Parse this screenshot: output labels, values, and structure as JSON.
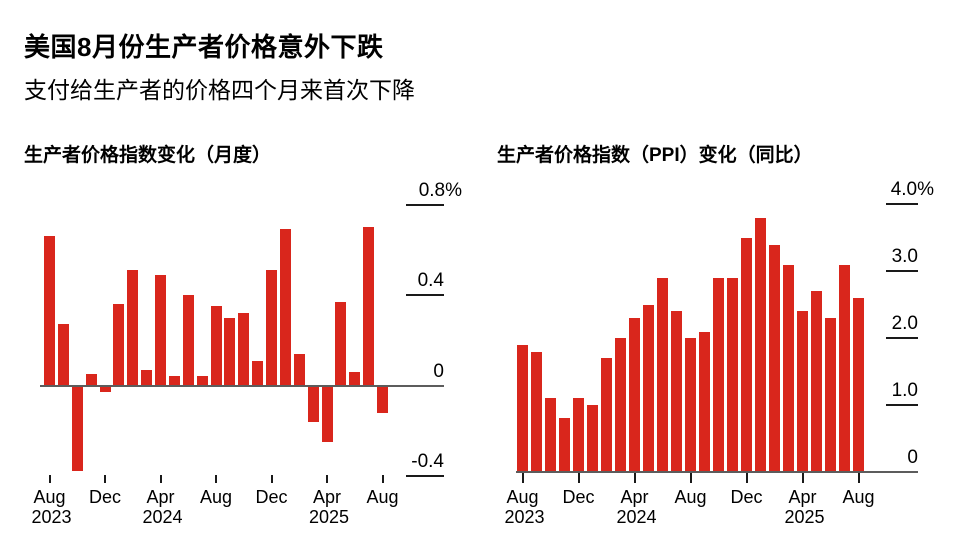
{
  "header": {
    "title": "美国8月份生产者价格意外下跌",
    "subtitle": "支付给生产者的价格四个月来首次下降"
  },
  "colors": {
    "bar_red": "#d9261c",
    "axis_line": "#5c5c5c",
    "tick_line": "#1a1a1a",
    "text": "#000000",
    "background": "#ffffff"
  },
  "chart_data": [
    {
      "type": "bar",
      "title": "生产者价格指数变化（月度）",
      "unit": "%",
      "legend": "none",
      "grid": false,
      "categories": [
        "Aug 2023",
        "Sep 2023",
        "Oct 2023",
        "Nov 2023",
        "Dec 2023",
        "Jan 2024",
        "Feb 2024",
        "Mar 2024",
        "Apr 2024",
        "May 2024",
        "Jun 2024",
        "Jul 2024",
        "Aug 2024",
        "Sep 2024",
        "Oct 2024",
        "Nov 2024",
        "Dec 2024",
        "Jan 2025",
        "Feb 2025",
        "Mar 2025",
        "Apr 2025",
        "May 2025",
        "Jun 2025",
        "Jul 2025",
        "Aug 2025"
      ],
      "values": [
        0.66,
        0.27,
        -0.38,
        0.05,
        -0.03,
        0.36,
        0.51,
        0.07,
        0.49,
        0.04,
        0.4,
        0.04,
        0.35,
        0.3,
        0.32,
        0.11,
        0.51,
        0.69,
        0.14,
        -0.16,
        -0.25,
        0.37,
        0.06,
        0.7,
        -0.12
      ],
      "ylim": [
        -0.48,
        0.92
      ],
      "yticks": {
        "labels": [
          "0.8%",
          "0.4",
          "0",
          "-0.4"
        ],
        "values": [
          0.8,
          0.4,
          0,
          -0.4
        ]
      },
      "xticks": {
        "indices": [
          0,
          4,
          8,
          12,
          16,
          20,
          24
        ],
        "labels": [
          "Aug",
          "Dec",
          "Apr",
          "Aug",
          "Dec",
          "Apr",
          "Aug"
        ],
        "years": {
          "0": "2023",
          "8": "2024",
          "20": "2025"
        }
      }
    },
    {
      "type": "bar",
      "title": "生产者价格指数（PPI）变化（同比）",
      "unit": "%",
      "legend": "none",
      "grid": false,
      "categories": [
        "Aug 2023",
        "Sep 2023",
        "Oct 2023",
        "Nov 2023",
        "Dec 2023",
        "Jan 2024",
        "Feb 2024",
        "Mar 2024",
        "Apr 2024",
        "May 2024",
        "Jun 2024",
        "Jul 2024",
        "Aug 2024",
        "Sep 2024",
        "Oct 2024",
        "Nov 2024",
        "Dec 2024",
        "Jan 2025",
        "Feb 2025",
        "Mar 2025",
        "Apr 2025",
        "May 2025",
        "Jun 2025",
        "Jul 2025",
        "Aug 2025"
      ],
      "values": [
        1.9,
        1.8,
        1.1,
        0.8,
        1.1,
        1.0,
        1.7,
        2.0,
        2.3,
        2.5,
        2.9,
        2.4,
        2.0,
        2.1,
        2.9,
        2.9,
        3.5,
        3.8,
        3.4,
        3.1,
        2.4,
        2.7,
        2.3,
        3.1,
        2.6
      ],
      "ylim": [
        0,
        4.1
      ],
      "yticks": {
        "labels": [
          "4.0%",
          "3.0",
          "2.0",
          "1.0",
          "0"
        ],
        "values": [
          4.0,
          3.0,
          2.0,
          1.0,
          0
        ]
      },
      "xticks": {
        "indices": [
          0,
          4,
          8,
          12,
          16,
          20,
          24
        ],
        "labels": [
          "Aug",
          "Dec",
          "Apr",
          "Aug",
          "Dec",
          "Apr",
          "Aug"
        ],
        "years": {
          "0": "2023",
          "8": "2024",
          "20": "2025"
        }
      }
    }
  ]
}
